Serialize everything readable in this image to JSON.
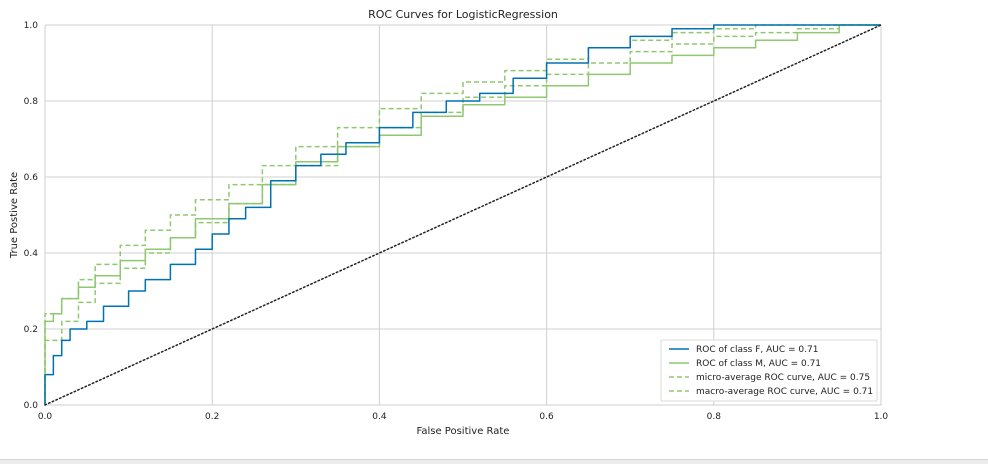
{
  "chart_data": {
    "type": "line",
    "title": "ROC Curves for LogisticRegression",
    "xlabel": "False Positive Rate",
    "ylabel": "True Postive Rate",
    "xlim": [
      0,
      1
    ],
    "ylim": [
      0,
      1
    ],
    "x_ticks": [
      "0.0",
      "0.2",
      "0.4",
      "0.6",
      "0.8",
      "1.0"
    ],
    "y_ticks": [
      "0.0",
      "0.2",
      "0.4",
      "0.6",
      "0.8",
      "1.0"
    ],
    "grid": true,
    "legend_position": "bottom-right",
    "colors": {
      "class_f": "#0072b2",
      "class_m": "#8fc870",
      "micro": "#8fc870",
      "macro": "#8fc870",
      "diagonal": "#222222",
      "grid": "#d0d0d0",
      "axes": "#cfcfcf"
    },
    "series": [
      {
        "name": "ROC of class F, AUC = 0.71",
        "style": "solid",
        "x": [
          0,
          0,
          0.01,
          0.02,
          0.03,
          0.05,
          0.07,
          0.1,
          0.12,
          0.15,
          0.18,
          0.2,
          0.22,
          0.24,
          0.27,
          0.3,
          0.33,
          0.36,
          0.4,
          0.44,
          0.48,
          0.52,
          0.56,
          0.6,
          0.65,
          0.7,
          0.75,
          0.8,
          0.85,
          0.9,
          1.0
        ],
        "y": [
          0,
          0.06,
          0.08,
          0.13,
          0.17,
          0.2,
          0.22,
          0.26,
          0.3,
          0.33,
          0.37,
          0.41,
          0.45,
          0.49,
          0.52,
          0.59,
          0.63,
          0.66,
          0.69,
          0.73,
          0.77,
          0.8,
          0.82,
          0.86,
          0.9,
          0.94,
          0.97,
          0.99,
          1.0,
          1.0,
          1.0
        ]
      },
      {
        "name": "ROC of class M, AUC = 0.71",
        "style": "solid",
        "x": [
          0,
          0,
          0.01,
          0.02,
          0.04,
          0.06,
          0.09,
          0.12,
          0.15,
          0.18,
          0.22,
          0.26,
          0.3,
          0.35,
          0.4,
          0.45,
          0.5,
          0.55,
          0.6,
          0.65,
          0.7,
          0.75,
          0.8,
          0.85,
          0.9,
          0.95,
          1.0
        ],
        "y": [
          0,
          0.16,
          0.22,
          0.24,
          0.28,
          0.31,
          0.34,
          0.38,
          0.41,
          0.44,
          0.49,
          0.53,
          0.58,
          0.64,
          0.68,
          0.71,
          0.76,
          0.79,
          0.81,
          0.84,
          0.87,
          0.9,
          0.92,
          0.94,
          0.96,
          0.98,
          1.0
        ]
      },
      {
        "name": "micro-average ROC curve, AUC = 0.75",
        "style": "dashed",
        "x": [
          0,
          0,
          0.02,
          0.04,
          0.06,
          0.09,
          0.12,
          0.15,
          0.18,
          0.22,
          0.26,
          0.3,
          0.35,
          0.4,
          0.45,
          0.5,
          0.55,
          0.6,
          0.65,
          0.7,
          0.75,
          0.8,
          0.85,
          0.9,
          1.0
        ],
        "y": [
          0,
          0.12,
          0.24,
          0.28,
          0.33,
          0.37,
          0.42,
          0.46,
          0.5,
          0.54,
          0.58,
          0.63,
          0.68,
          0.73,
          0.78,
          0.82,
          0.85,
          0.88,
          0.91,
          0.94,
          0.96,
          0.98,
          0.99,
          1.0,
          1.0
        ]
      },
      {
        "name": "macro-average ROC curve, AUC = 0.71",
        "style": "dashed",
        "x": [
          0,
          0,
          0.02,
          0.04,
          0.06,
          0.09,
          0.12,
          0.15,
          0.18,
          0.22,
          0.26,
          0.3,
          0.35,
          0.4,
          0.45,
          0.5,
          0.55,
          0.6,
          0.65,
          0.7,
          0.75,
          0.8,
          0.85,
          0.9,
          0.95,
          1.0
        ],
        "y": [
          0,
          0.09,
          0.17,
          0.22,
          0.27,
          0.32,
          0.36,
          0.4,
          0.44,
          0.48,
          0.53,
          0.58,
          0.63,
          0.68,
          0.73,
          0.77,
          0.81,
          0.84,
          0.87,
          0.9,
          0.93,
          0.95,
          0.97,
          0.98,
          0.99,
          1.0
        ]
      }
    ],
    "reference_line": {
      "style": "dotted",
      "x": [
        0,
        1
      ],
      "y": [
        0,
        1
      ]
    }
  }
}
